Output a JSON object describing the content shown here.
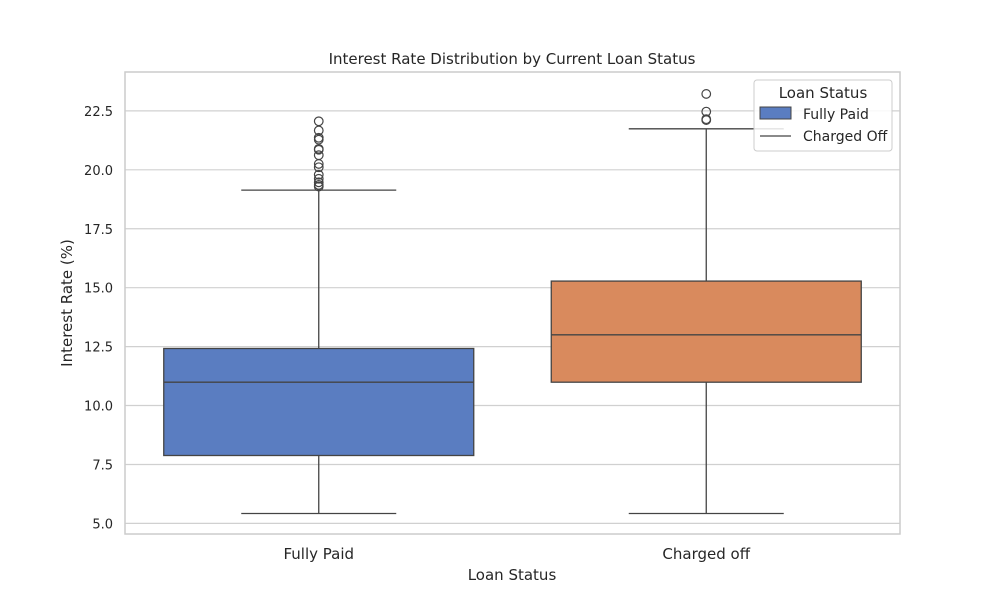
{
  "chart_data": {
    "type": "box",
    "title": "Interest Rate Distribution by Current Loan Status",
    "xlabel": "Loan Status",
    "ylabel": "Interest Rate (%)",
    "categories": [
      "Fully Paid",
      "Charged off"
    ],
    "ylim": [
      4.55,
      24.15
    ],
    "yticks": [
      "5.0",
      "7.5",
      "10.0",
      "12.5",
      "15.0",
      "17.5",
      "20.0",
      "22.5"
    ],
    "grid": true,
    "boxes": [
      {
        "category": "Fully Paid",
        "color": "#5a7dc1",
        "whisker_low": 5.42,
        "q1": 7.88,
        "median": 10.99,
        "q3": 12.42,
        "whisker_high": 19.14,
        "outliers": [
          19.29,
          19.36,
          19.47,
          19.62,
          19.79,
          20.11,
          20.25,
          20.62,
          20.85,
          20.89,
          21.28,
          21.36,
          21.67,
          22.06
        ]
      },
      {
        "category": "Charged off",
        "color": "#d98a5d",
        "whisker_low": 5.42,
        "q1": 10.99,
        "median": 13.0,
        "q3": 15.28,
        "whisker_high": 21.74,
        "outliers": [
          22.11,
          22.15,
          22.47,
          23.22
        ]
      }
    ],
    "legend": {
      "title": "Loan Status",
      "placement": "top-right",
      "entries": [
        {
          "label": "Fully Paid",
          "kind": "patch",
          "color": "#5a7dc1"
        },
        {
          "label": "Charged Off",
          "kind": "line",
          "color": "#444444"
        }
      ]
    }
  }
}
